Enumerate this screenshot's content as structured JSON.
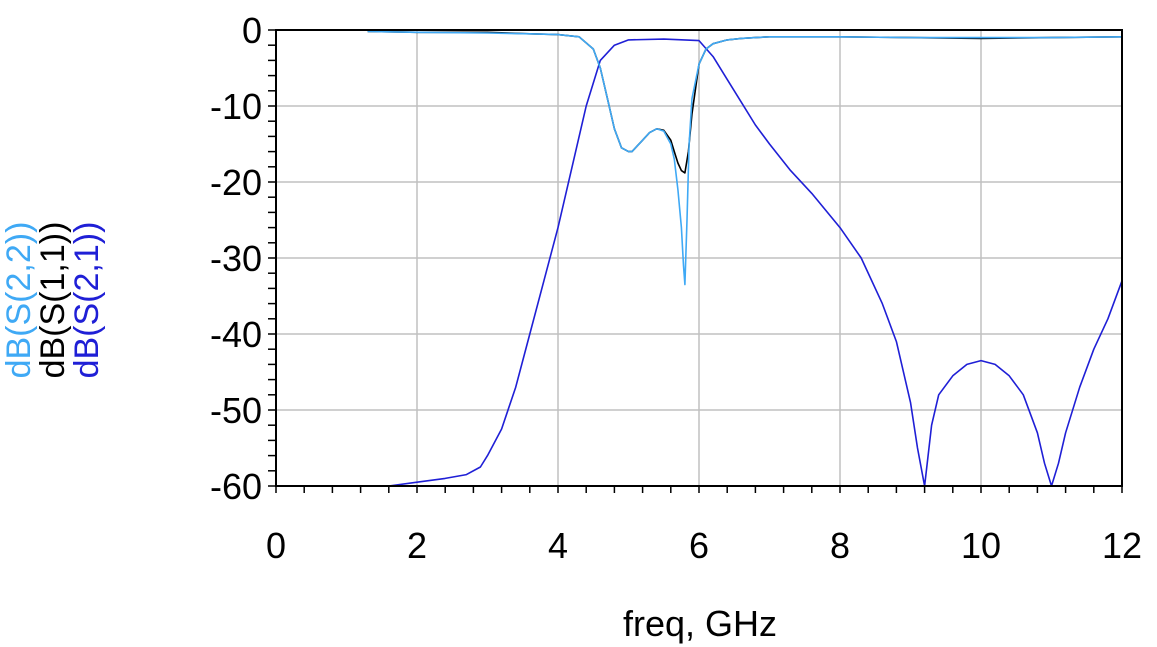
{
  "chart_data": {
    "type": "line",
    "title": "",
    "xlabel": "freq, GHz",
    "xlim": [
      0,
      12
    ],
    "ylim": [
      -60,
      0
    ],
    "xticks": [
      0,
      2,
      4,
      6,
      8,
      10,
      12
    ],
    "yticks": [
      0,
      -10,
      -20,
      -30,
      -40,
      -50,
      -60
    ],
    "xtick_labels": [
      "0",
      "2",
      "4",
      "6",
      "8",
      "10",
      "12"
    ],
    "ytick_labels": [
      "0",
      "-10",
      "-20",
      "-30",
      "-40",
      "-50",
      "-60"
    ],
    "grid": true,
    "legend_placement": "left, rotated vertical",
    "series": [
      {
        "name": "dB(S(2,2))",
        "color": "#3fa9f5",
        "x": [
          1.3,
          2,
          3,
          3.6,
          4,
          4.3,
          4.5,
          4.6,
          4.7,
          4.8,
          4.9,
          5.0,
          5.05,
          5.1,
          5.2,
          5.3,
          5.4,
          5.5,
          5.6,
          5.65,
          5.7,
          5.75,
          5.78,
          5.8,
          5.83,
          5.86,
          5.9,
          6.0,
          6.1,
          6.2,
          6.4,
          6.6,
          6.8,
          7,
          7.5,
          8,
          9,
          10,
          11,
          12
        ],
        "y": [
          -0.2,
          -0.3,
          -0.4,
          -0.5,
          -0.6,
          -0.9,
          -2.5,
          -5,
          -9,
          -13,
          -15.5,
          -16,
          -16,
          -15.5,
          -14.5,
          -13.5,
          -13,
          -13.3,
          -15,
          -17,
          -21,
          -26,
          -31,
          -33.5,
          -25,
          -15,
          -9,
          -4.5,
          -2.5,
          -1.8,
          -1.3,
          -1.1,
          -1.0,
          -0.9,
          -0.9,
          -0.9,
          -1.0,
          -1.0,
          -1.0,
          -0.9
        ]
      },
      {
        "name": "dB(S(1,1))",
        "color": "#000000",
        "x": [
          1.3,
          2,
          3,
          3.6,
          4,
          4.3,
          4.5,
          4.6,
          4.7,
          4.8,
          4.9,
          5.0,
          5.05,
          5.1,
          5.2,
          5.3,
          5.4,
          5.5,
          5.6,
          5.65,
          5.7,
          5.75,
          5.8,
          5.85,
          5.9,
          6.0,
          6.1,
          6.2,
          6.4,
          6.6,
          6.8,
          7,
          7.5,
          8,
          9,
          10,
          11,
          12
        ],
        "y": [
          -0.2,
          -0.3,
          -0.3,
          -0.5,
          -0.6,
          -0.9,
          -2.5,
          -5,
          -9,
          -13,
          -15.5,
          -16,
          -16,
          -15.5,
          -14.5,
          -13.5,
          -13,
          -13.2,
          -14.5,
          -16,
          -17.5,
          -18.5,
          -18.8,
          -16,
          -11,
          -4.5,
          -2.5,
          -1.8,
          -1.3,
          -1.1,
          -1.0,
          -0.9,
          -0.9,
          -0.9,
          -1.0,
          -1.1,
          -1.0,
          -0.9
        ]
      },
      {
        "name": "dB(S(2,1))",
        "color": "#1f1fd6",
        "x": [
          1.3,
          1.6,
          2.0,
          2.4,
          2.7,
          2.9,
          3.0,
          3.2,
          3.4,
          3.6,
          3.8,
          4.0,
          4.2,
          4.4,
          4.6,
          4.8,
          5.0,
          5.5,
          6.0,
          6.2,
          6.4,
          6.6,
          6.8,
          7.0,
          7.3,
          7.6,
          8.0,
          8.3,
          8.6,
          8.8,
          9.0,
          9.1,
          9.2,
          9.3,
          9.4,
          9.6,
          9.8,
          10.0,
          10.2,
          10.4,
          10.6,
          10.8,
          10.9,
          11.0,
          11.1,
          11.2,
          11.4,
          11.6,
          11.8,
          12.0
        ],
        "y": [
          -60,
          -60,
          -59.5,
          -59,
          -58.5,
          -57.5,
          -56,
          -52.5,
          -47,
          -40,
          -33,
          -26,
          -18,
          -10,
          -4,
          -2,
          -1.3,
          -1.2,
          -1.4,
          -3.5,
          -6.5,
          -9.5,
          -12.5,
          -15,
          -18.5,
          -21.5,
          -26,
          -30,
          -36,
          -41,
          -49,
          -55,
          -60,
          -52,
          -48,
          -45.5,
          -44,
          -43.5,
          -44,
          -45.5,
          -48,
          -53,
          -57,
          -60,
          -57,
          -53,
          -47,
          -42,
          -38,
          -33
        ]
      }
    ]
  }
}
